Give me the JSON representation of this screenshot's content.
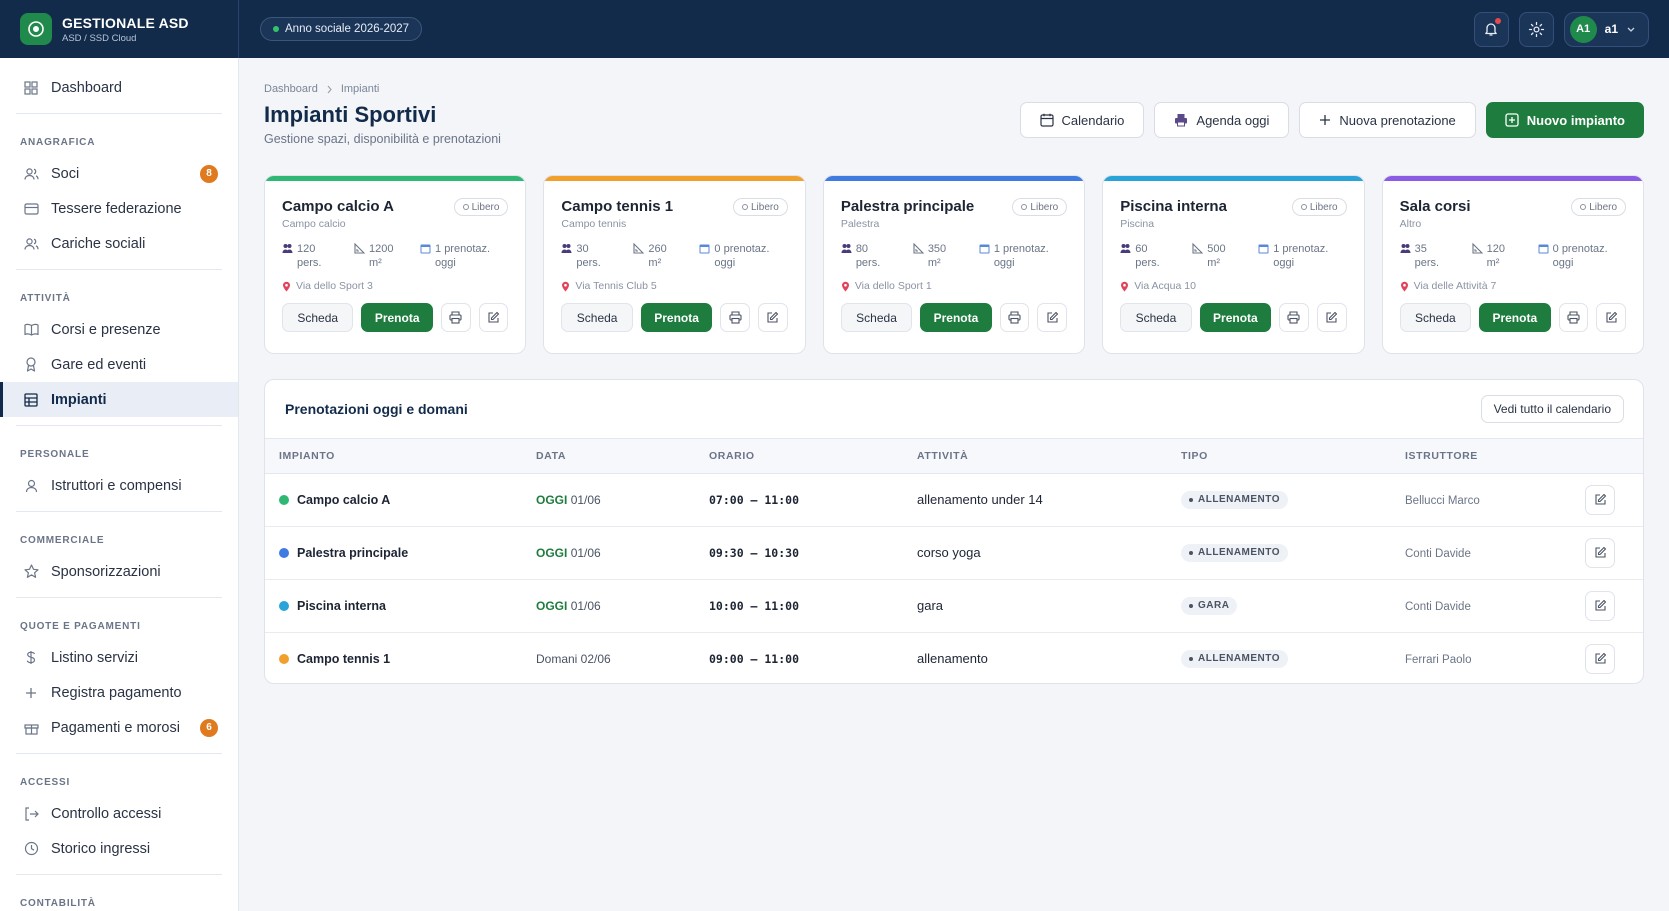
{
  "brand": {
    "title": "GESTIONALE ASD",
    "subtitle": "ASD / SSD Cloud"
  },
  "season": "Anno sociale 2026-2027",
  "user": {
    "initials": "A1",
    "name": "a1"
  },
  "sidebar": {
    "dashboard": "Dashboard",
    "sections": {
      "anagrafica": "ANAGRAFICA",
      "attivita": "ATTIVITÀ",
      "personale": "PERSONALE",
      "commerciale": "COMMERCIALE",
      "quote": "QUOTE E PAGAMENTI",
      "accessi": "ACCESSI",
      "contabilita": "CONTABILITÀ"
    },
    "items": {
      "soci": "Soci",
      "soci_badge": "8",
      "tessere": "Tessere federazione",
      "cariche": "Cariche sociali",
      "corsi": "Corsi e presenze",
      "gare": "Gare ed eventi",
      "impianti": "Impianti",
      "istruttori": "Istruttori e compensi",
      "sponsor": "Sponsorizzazioni",
      "listino": "Listino servizi",
      "registra": "Registra pagamento",
      "pagamenti": "Pagamenti e morosi",
      "pagamenti_badge": "6",
      "controllo": "Controllo accessi",
      "storico": "Storico ingressi"
    }
  },
  "breadcrumb": {
    "root": "Dashboard",
    "current": "Impianti"
  },
  "page": {
    "title": "Impianti Sportivi",
    "subtitle": "Gestione spazi, disponibilità e prenotazioni"
  },
  "actions": {
    "calendario": "Calendario",
    "agenda": "Agenda oggi",
    "nuova_prenotazione": "Nuova prenotazione",
    "nuovo_impianto": "Nuovo impianto"
  },
  "card_labels": {
    "status": "Libero",
    "scheda": "Scheda",
    "prenota": "Prenota",
    "pers": "pers.",
    "m2": "m²",
    "prenotaz": "prenotaz.",
    "oggi": "oggi"
  },
  "facilities": [
    {
      "name": "Campo calcio A",
      "type": "Campo calcio",
      "capacity": "120",
      "area": "1200",
      "bookings": "1",
      "address": "Via dello Sport 3",
      "color": "#2fb874"
    },
    {
      "name": "Campo tennis 1",
      "type": "Campo tennis",
      "capacity": "30",
      "area": "260",
      "bookings": "0",
      "address": "Via Tennis Club 5",
      "color": "#f0a02b"
    },
    {
      "name": "Palestra principale",
      "type": "Palestra",
      "capacity": "80",
      "area": "350",
      "bookings": "1",
      "address": "Via dello Sport 1",
      "color": "#3f7be0"
    },
    {
      "name": "Piscina interna",
      "type": "Piscina",
      "capacity": "60",
      "area": "500",
      "bookings": "1",
      "address": "Via Acqua 10",
      "color": "#2aa3d8"
    },
    {
      "name": "Sala corsi",
      "type": "Altro",
      "capacity": "35",
      "area": "120",
      "bookings": "0",
      "address": "Via delle Attività 7",
      "color": "#8b5be6"
    }
  ],
  "bookings": {
    "title": "Prenotazioni oggi e domani",
    "view_all": "Vedi tutto il calendario",
    "columns": [
      "IMPIANTO",
      "DATA",
      "ORARIO",
      "ATTIVITÀ",
      "TIPO",
      "ISTRUTTORE"
    ],
    "rows": [
      {
        "facility": "Campo calcio A",
        "color": "#2fb874",
        "day": "OGGI",
        "date": "01/06",
        "time": "07:00 – 11:00",
        "activity": "allenamento under 14",
        "type": "ALLENAMENTO",
        "instructor": "Bellucci Marco"
      },
      {
        "facility": "Palestra principale",
        "color": "#3f7be0",
        "day": "OGGI",
        "date": "01/06",
        "time": "09:30 – 10:30",
        "activity": "corso yoga",
        "type": "ALLENAMENTO",
        "instructor": "Conti Davide"
      },
      {
        "facility": "Piscina interna",
        "color": "#2aa3d8",
        "day": "OGGI",
        "date": "01/06",
        "time": "10:00 – 11:00",
        "activity": "gara",
        "type": "GARA",
        "instructor": "Conti Davide"
      },
      {
        "facility": "Campo tennis 1",
        "color": "#f0a02b",
        "day": "",
        "date": "Domani 02/06",
        "time": "09:00 – 11:00",
        "activity": "allenamento",
        "type": "ALLENAMENTO",
        "instructor": "Ferrari Paolo"
      }
    ]
  }
}
